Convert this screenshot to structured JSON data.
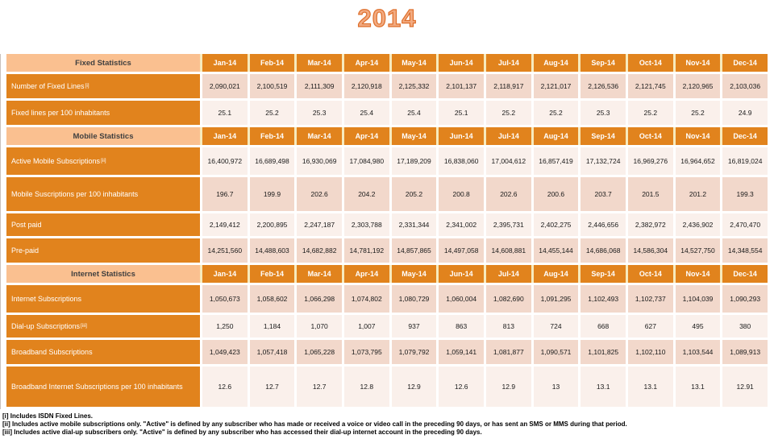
{
  "title": "2014",
  "columns": [
    "Jan-14",
    "Feb-14",
    "Mar-14",
    "Apr-14",
    "May-14",
    "Jun-14",
    "Jul-14",
    "Aug-14",
    "Sep-14",
    "Oct-14",
    "Nov-14",
    "Dec-14"
  ],
  "sections": [
    {
      "header": "Fixed Statistics",
      "rows": [
        {
          "label": "Number of  Fixed Lines",
          "sup": "[i]",
          "band": "dark",
          "values": [
            "2,090,021",
            "2,100,519",
            "2,111,309",
            "2,120,918",
            "2,125,332",
            "2,101,137",
            "2,118,917",
            "2,121,017",
            "2,126,536",
            "2,121,745",
            "2,120,965",
            "2,103,036"
          ]
        },
        {
          "label": "Fixed lines per 100 inhabitants",
          "sup": "",
          "band": "light",
          "values": [
            "25.1",
            "25.2",
            "25.3",
            "25.4",
            "25.4",
            "25.1",
            "25.2",
            "25.2",
            "25.3",
            "25.2",
            "25.2",
            "24.9"
          ]
        }
      ]
    },
    {
      "header": "Mobile Statistics",
      "rows": [
        {
          "label": "Active Mobile Subscriptions",
          "sup": "[ii]",
          "band": "light",
          "values": [
            "16,400,972",
            "16,689,498",
            "16,930,069",
            "17,084,980",
            "17,189,209",
            "16,838,060",
            "17,004,612",
            "16,857,419",
            "17,132,724",
            "16,969,276",
            "16,964,652",
            "16,819,024"
          ]
        },
        {
          "label": "Mobile Suscriptions per 100 inhabitants",
          "sup": "",
          "band": "dark",
          "values": [
            "196.7",
            "199.9",
            "202.6",
            "204.2",
            "205.2",
            "200.8",
            "202.6",
            "200.6",
            "203.7",
            "201.5",
            "201.2",
            "199.3"
          ]
        },
        {
          "label": "Post paid",
          "sup": "",
          "band": "light",
          "values": [
            "2,149,412",
            "2,200,895",
            "2,247,187",
            "2,303,788",
            "2,331,344",
            "2,341,002",
            "2,395,731",
            "2,402,275",
            "2,446,656",
            "2,382,972",
            "2,436,902",
            "2,470,470"
          ]
        },
        {
          "label": "Pre-paid",
          "sup": "",
          "band": "dark",
          "values": [
            "14,251,560",
            "14,488,603",
            "14,682,882",
            "14,781,192",
            "14,857,865",
            "14,497,058",
            "14,608,881",
            "14,455,144",
            "14,686,068",
            "14,586,304",
            "14,527,750",
            "14,348,554"
          ]
        }
      ]
    },
    {
      "header": "Internet  Statistics",
      "rows": [
        {
          "label": "Internet Subscriptions",
          "sup": "",
          "band": "dark",
          "values": [
            "1,050,673",
            "1,058,602",
            "1,066,298",
            "1,074,802",
            "1,080,729",
            "1,060,004",
            "1,082,690",
            "1,091,295",
            "1,102,493",
            "1,102,737",
            "1,104,039",
            "1,090,293"
          ]
        },
        {
          "label": "Dial-up Subscriptions ",
          "sup": "[iii]",
          "band": "light",
          "values": [
            "1,250",
            "1,184",
            "1,070",
            "1,007",
            "937",
            "863",
            "813",
            "724",
            "668",
            "627",
            "495",
            "380"
          ]
        },
        {
          "label": "Broadband Subscriptions",
          "sup": "",
          "band": "dark",
          "values": [
            "1,049,423",
            "1,057,418",
            "1,065,228",
            "1,073,795",
            "1,079,792",
            "1,059,141",
            "1,081,877",
            "1,090,571",
            "1,101,825",
            "1,102,110",
            "1,103,544",
            "1,089,913"
          ]
        },
        {
          "label": "Broadband Internet Subscriptions per 100 inhabitants",
          "sup": "",
          "band": "light",
          "values": [
            "12.6",
            "12.7",
            "12.7",
            "12.8",
            "12.9",
            "12.6",
            "12.9",
            "13",
            "13.1",
            "13.1",
            "13.1",
            "12.91"
          ]
        }
      ]
    }
  ],
  "footnotes": [
    "[i] Includes ISDN Fixed Lines.",
    "[ii] Includes active mobile subscriptions only.  \"Active\" is defined by any subscriber who has made or received a voice or video call in the preceding 90 days, or has sent an SMS or MMS during that period.",
    "[iii] Includes active dial-up subscribers only.  \"Active\" is defined by any subscriber who has accessed their dial-up internet account in the preceding 90 days."
  ],
  "colors": {
    "accent_orange": "#E1831D",
    "section_header_tan": "#FAC090",
    "band_dark": "#F2D8CB",
    "band_light": "#FAF0EB",
    "header_gap_cream": "#F7EABC",
    "title_fill": "#F2AB81",
    "title_outline": "#DE6F2C"
  }
}
